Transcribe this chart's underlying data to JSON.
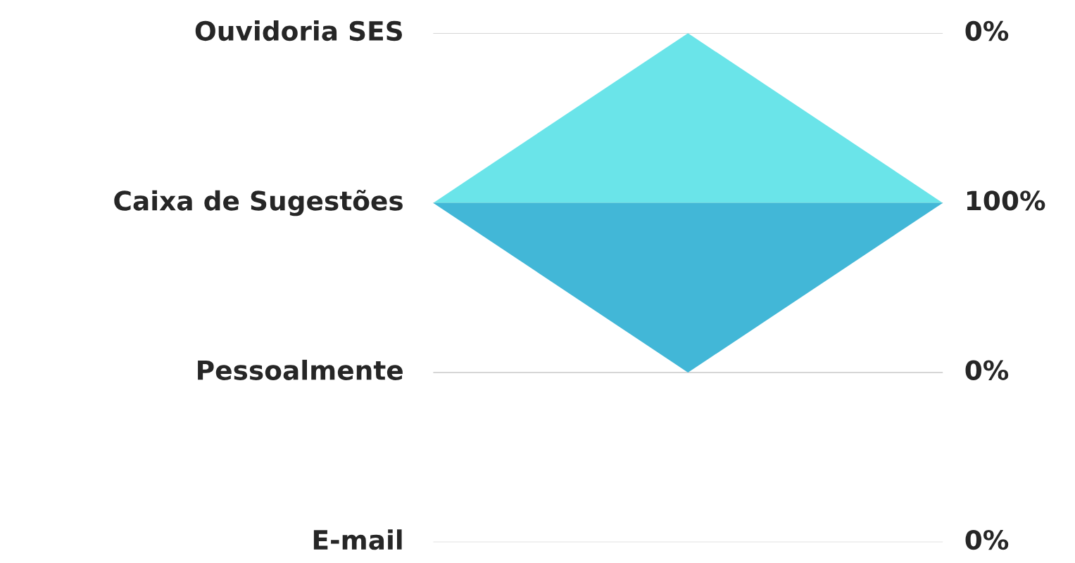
{
  "chart_data": {
    "type": "other",
    "categories": [
      "Ouvidoria SES",
      "Caixa de Sugestões",
      "Pessoalmente",
      "E-mail"
    ],
    "values": [
      0,
      100,
      0,
      0
    ],
    "value_labels": [
      "0%",
      "100%",
      "0%",
      "0%"
    ],
    "colors": [
      "#6ae4e9",
      "#42b7d7",
      "#42b7d7",
      "#42b7d7"
    ]
  }
}
